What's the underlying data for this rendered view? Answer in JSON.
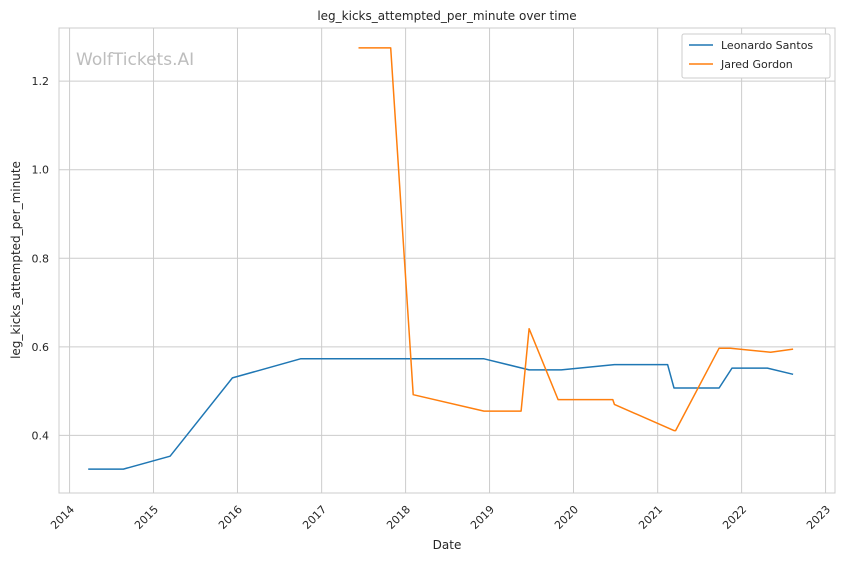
{
  "chart_data": {
    "type": "line",
    "title": "leg_kicks_attempted_per_minute over time",
    "xlabel": "Date",
    "ylabel": "leg_kicks_attempted_per_minute",
    "watermark": "WolfTickets.AI",
    "x_axis": {
      "kind": "date",
      "range": [
        "2013-11-16",
        "2023-02-11"
      ],
      "ticks": [
        "2014",
        "2015",
        "2016",
        "2017",
        "2018",
        "2019",
        "2020",
        "2021",
        "2022",
        "2023"
      ]
    },
    "y_axis": {
      "range": [
        0.27,
        1.32
      ],
      "ticks": [
        "0.4",
        "0.6",
        "0.8",
        "1.0",
        "1.2"
      ]
    },
    "grid": true,
    "legend": {
      "placement": "top-right"
    },
    "series": [
      {
        "name": "Leonardo Santos",
        "color": "#1f77b4",
        "points": [
          [
            "2014-03-23",
            0.324
          ],
          [
            "2014-08-23",
            0.324
          ],
          [
            "2015-03-14",
            0.353
          ],
          [
            "2015-12-10",
            0.53
          ],
          [
            "2016-10-01",
            0.573
          ],
          [
            "2018-12-08",
            0.573
          ],
          [
            "2019-06-22",
            0.548
          ],
          [
            "2019-11-09",
            0.548
          ],
          [
            "2020-06-27",
            0.56
          ],
          [
            "2021-02-13",
            0.56
          ],
          [
            "2021-03-13",
            0.507
          ],
          [
            "2021-09-25",
            0.507
          ],
          [
            "2021-11-20",
            0.552
          ],
          [
            "2022-04-23",
            0.552
          ],
          [
            "2022-08-13",
            0.538
          ]
        ]
      },
      {
        "name": "Jared Gordon",
        "color": "#ff7f0e",
        "points": [
          [
            "2017-06-10",
            1.275
          ],
          [
            "2017-10-28",
            1.275
          ],
          [
            "2018-02-03",
            0.492
          ],
          [
            "2018-12-08",
            0.455
          ],
          [
            "2019-05-18",
            0.455
          ],
          [
            "2019-06-22",
            0.641
          ],
          [
            "2019-10-26",
            0.481
          ],
          [
            "2020-06-20",
            0.481
          ],
          [
            "2020-06-27",
            0.47
          ],
          [
            "2021-03-13",
            0.411
          ],
          [
            "2021-03-20",
            0.411
          ],
          [
            "2021-09-25",
            0.597
          ],
          [
            "2021-11-13",
            0.597
          ],
          [
            "2022-05-07",
            0.588
          ],
          [
            "2022-08-13",
            0.595
          ]
        ]
      }
    ]
  }
}
